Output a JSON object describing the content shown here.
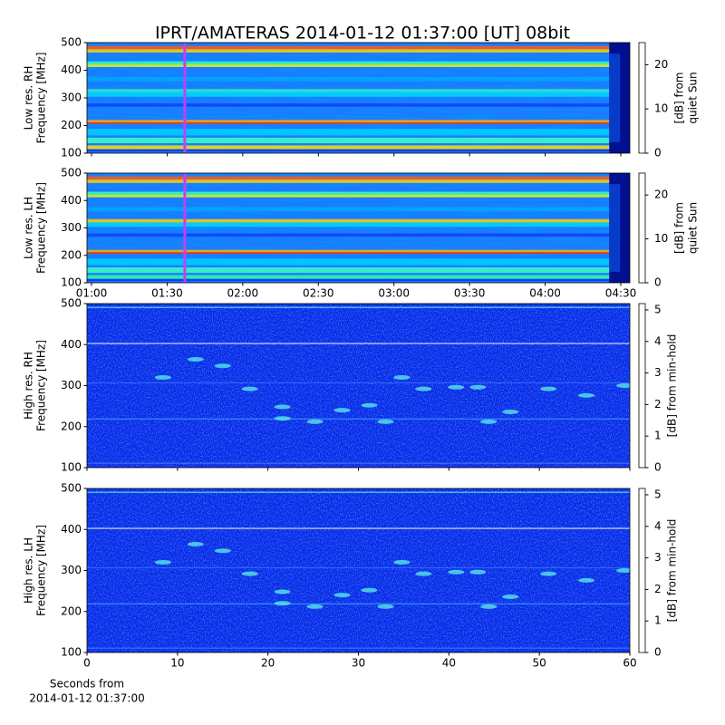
{
  "title": "IPRT/AMATERAS 2014-01-12 01:37:00 [UT]   08bit",
  "chart_data": [
    {
      "type": "spectrogram",
      "ylabel": [
        "Low res. RH",
        "Frequency [MHz]"
      ],
      "ylim": [
        100,
        500
      ],
      "yticks": [
        100,
        200,
        300,
        400,
        500
      ],
      "xlim": [
        58.2,
        273.6
      ],
      "xticks": [
        {
          "value": 60,
          "label": "01:00"
        },
        {
          "value": 90,
          "label": "01:30"
        },
        {
          "value": 120,
          "label": "02:00"
        },
        {
          "value": 150,
          "label": "02:30"
        },
        {
          "value": 180,
          "label": "03:00"
        },
        {
          "value": 210,
          "label": "03:30"
        },
        {
          "value": 240,
          "label": "04:00"
        },
        {
          "value": 270,
          "label": "04:30"
        }
      ],
      "xtick_labels": false,
      "marker_x": 97,
      "marker_color": "#c040ff",
      "resolution": "low",
      "colorbar": {
        "label": [
          "[dB] from",
          "quiet Sun"
        ],
        "lim": [
          0,
          25
        ],
        "ticks": [
          0,
          10,
          20
        ]
      }
    },
    {
      "type": "spectrogram",
      "ylabel": [
        "Low res. LH",
        "Frequency [MHz]"
      ],
      "ylim": [
        100,
        500
      ],
      "yticks": [
        100,
        200,
        300,
        400,
        500
      ],
      "xlim": [
        58.2,
        273.6
      ],
      "xticks": [
        {
          "value": 60,
          "label": "01:00"
        },
        {
          "value": 90,
          "label": "01:30"
        },
        {
          "value": 120,
          "label": "02:00"
        },
        {
          "value": 150,
          "label": "02:30"
        },
        {
          "value": 180,
          "label": "03:00"
        },
        {
          "value": 210,
          "label": "03:30"
        },
        {
          "value": 240,
          "label": "04:00"
        },
        {
          "value": 270,
          "label": "04:30"
        }
      ],
      "xtick_labels": true,
      "marker_x": 97,
      "marker_color": "#c040ff",
      "resolution": "low",
      "colorbar": {
        "label": [
          "[dB] from",
          "quiet Sun"
        ],
        "lim": [
          0,
          25
        ],
        "ticks": [
          0,
          10,
          20
        ]
      }
    },
    {
      "type": "spectrogram",
      "ylabel": [
        "High res. RH",
        "Frequency [MHz]"
      ],
      "ylim": [
        100,
        500
      ],
      "yticks": [
        100,
        200,
        300,
        400,
        500
      ],
      "xlim": [
        0,
        60
      ],
      "xticks": [
        0,
        10,
        20,
        30,
        40,
        50,
        60
      ],
      "xtick_labels": false,
      "resolution": "high",
      "colorbar": {
        "label": [
          "[dB] from min-hold"
        ],
        "lim": [
          0,
          5.2
        ],
        "ticks": [
          0,
          1,
          2,
          3,
          4,
          5
        ]
      }
    },
    {
      "type": "spectrogram",
      "ylabel": [
        "High res. LH",
        "Frequency [MHz]"
      ],
      "ylim": [
        100,
        500
      ],
      "yticks": [
        100,
        200,
        300,
        400,
        500
      ],
      "xlim": [
        0,
        60
      ],
      "xticks": [
        0,
        10,
        20,
        30,
        40,
        50,
        60
      ],
      "xtick_labels": true,
      "resolution": "high",
      "xlabel": [
        "Seconds from",
        "2014-01-12 01:37:00"
      ],
      "colorbar": {
        "label": [
          "[dB] from min-hold"
        ],
        "lim": [
          0,
          5.2
        ],
        "ticks": [
          0,
          1,
          2,
          3,
          4,
          5
        ]
      }
    }
  ]
}
